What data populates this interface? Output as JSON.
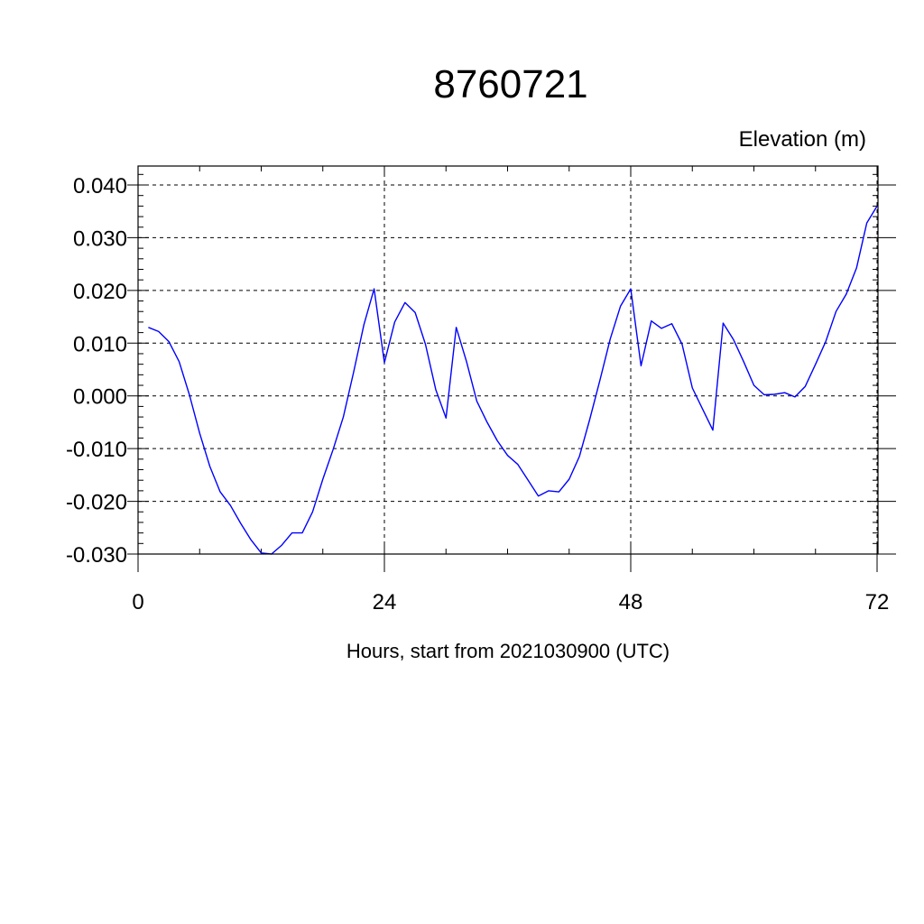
{
  "chart_data": {
    "type": "line",
    "title": "8760721",
    "ylabel": "Elevation (m)",
    "xlabel": "Hours, start from 2021030900 (UTC)",
    "xlim": [
      0,
      72
    ],
    "ylim": [
      -0.03,
      0.04
    ],
    "x_ticks": [
      0,
      24,
      48,
      72
    ],
    "x_tick_labels": [
      "0",
      "24",
      "48",
      "72"
    ],
    "y_ticks": [
      -0.03,
      -0.02,
      -0.01,
      0.0,
      0.01,
      0.02,
      0.03,
      0.04
    ],
    "y_tick_labels": [
      "-0.030",
      "-0.020",
      "-0.010",
      "0.000",
      "0.010",
      "0.020",
      "0.030",
      "0.040"
    ],
    "grid": true,
    "series": [
      {
        "color": "#0000ff",
        "x": [
          1,
          2,
          3,
          4,
          5,
          6,
          7,
          8,
          9,
          10,
          11,
          12,
          13,
          14,
          15,
          16,
          17,
          18,
          19,
          20,
          21,
          22,
          23,
          24,
          25,
          26,
          27,
          28,
          29,
          30,
          31,
          32,
          33,
          34,
          35,
          36,
          37,
          38,
          39,
          40,
          41,
          42,
          43,
          44,
          45,
          46,
          47,
          48,
          49,
          50,
          51,
          52,
          53,
          54,
          55,
          56,
          57,
          58,
          59,
          60,
          61,
          62,
          63,
          64,
          65,
          66,
          67,
          68,
          69,
          70,
          71,
          72
        ],
        "y": [
          0.013,
          0.0122,
          0.0103,
          0.0065,
          0.0002,
          -0.0071,
          -0.0134,
          -0.0182,
          -0.0208,
          -0.0242,
          -0.0273,
          -0.0298,
          -0.03,
          -0.0283,
          -0.026,
          -0.026,
          -0.022,
          -0.0158,
          -0.0102,
          -0.004,
          0.0045,
          0.0135,
          0.0203,
          0.0063,
          0.014,
          0.0177,
          0.0158,
          0.0098,
          0.0012,
          -0.0042,
          0.013,
          0.0065,
          -0.001,
          -0.005,
          -0.0085,
          -0.0113,
          -0.013,
          -0.016,
          -0.019,
          -0.018,
          -0.0182,
          -0.0158,
          -0.0115,
          -0.0045,
          0.003,
          0.0108,
          0.017,
          0.0203,
          0.0057,
          0.0142,
          0.0128,
          0.0137,
          0.0098,
          0.0015,
          -0.0025,
          -0.0065,
          0.0138,
          0.0107,
          0.0065,
          0.002,
          0.0002,
          0.0003,
          0.0006,
          -0.0002,
          0.0018,
          0.006,
          0.0103,
          0.016,
          0.0193,
          0.0243,
          0.0328,
          0.036
        ]
      }
    ]
  }
}
